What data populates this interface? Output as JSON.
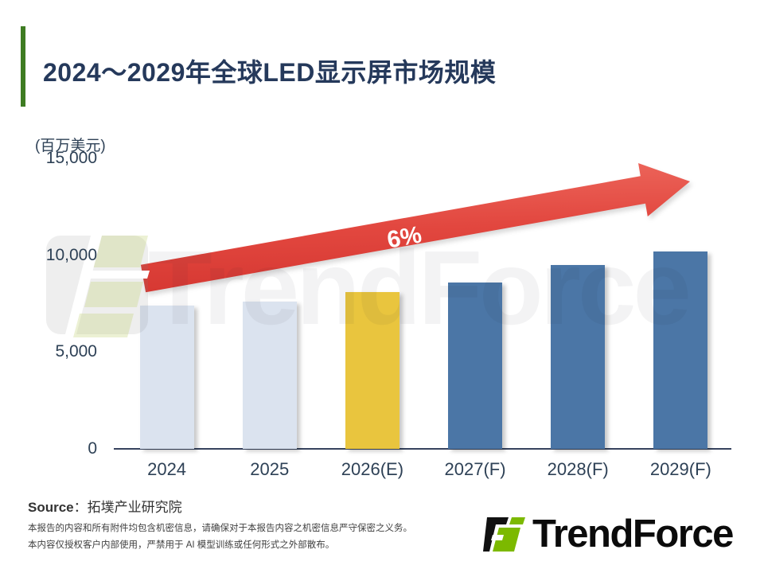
{
  "title": "2024～2029年全球LED显示屏市场规模",
  "chart_data": {
    "type": "bar",
    "title": "2024～2029年全球LED显示屏市场规模",
    "unit_label": "(百万美元)",
    "categories": [
      "2024",
      "2025",
      "2026(E)",
      "2027(F)",
      "2028(F)",
      "2029(F)"
    ],
    "values": [
      7400,
      7600,
      8080,
      8600,
      9500,
      10200
    ],
    "bar_colors": [
      "#dbe3ef",
      "#dbe3ef",
      "#e9c53e",
      "#4b76a6",
      "#4b76a6",
      "#4b76a6"
    ],
    "ylim": [
      0,
      15000
    ],
    "yticks": [
      {
        "label": "0",
        "value": 0
      },
      {
        "label": "5,000",
        "value": 5000
      },
      {
        "label": "10,000",
        "value": 10000
      },
      {
        "label": "15,000",
        "value": 15000
      }
    ],
    "grid": "off",
    "legend": "none",
    "growth_label": "6%",
    "annotation": "red upward arrow spanning 2024 to 2029 labeled 6%"
  },
  "watermark": {
    "text": "TrendForce"
  },
  "footer": {
    "source_label": "Source",
    "source_separator": "：",
    "source_name": "拓墣产业研究院",
    "disclaimer_line1": "本报告的内容和所有附件均包含机密信息，请确保对于本报告内容之机密信息严守保密之义务。",
    "disclaimer_line2": "本内容仅授权客户内部使用，严禁用于 AI 模型训练或任何形式之外部散布。",
    "logo_text": "TrendForce"
  },
  "colors": {
    "accent_green": "#3e7c22",
    "title_text": "#25395b",
    "axis_text": "#2e4156",
    "bar_light": "#dbe3ef",
    "bar_yellow": "#e9c53e",
    "bar_blue": "#4b76a6",
    "arrow_red_light": "#ec675c",
    "arrow_red_dark": "#d93a33",
    "logo_green": "#7cb900"
  }
}
